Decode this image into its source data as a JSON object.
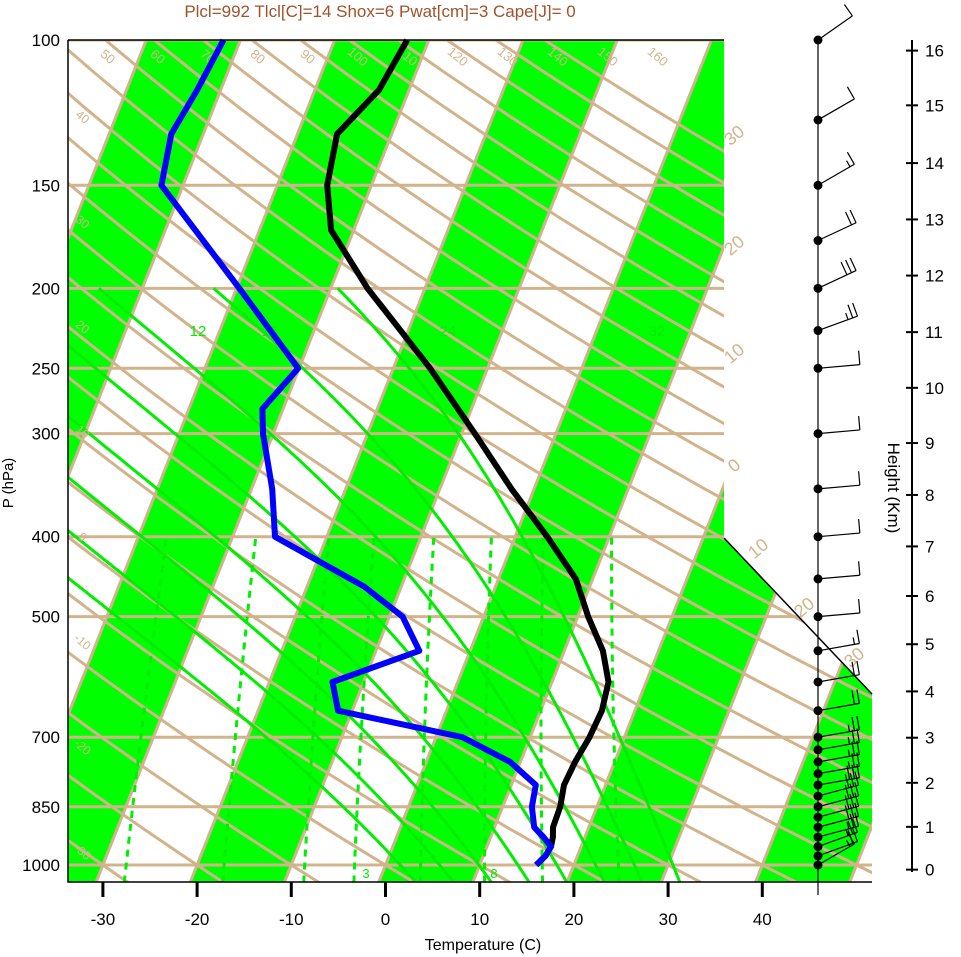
{
  "chart_data": {
    "type": "line",
    "title": "Plcl=992 Tlcl[C]=14 Shox=6 Pwat[cm]=3 Cape[J]= 0",
    "xlabel": "Temperature (C)",
    "ylabel": "P (hPa)",
    "y2label": "Height (Km)",
    "xlim": [
      -34,
      50
    ],
    "ylim": [
      1050,
      100
    ],
    "x_ticks": [
      "-30",
      "-20",
      "-10",
      "0",
      "10",
      "20",
      "30",
      "40"
    ],
    "x_tick_values": [
      -30,
      -20,
      -10,
      0,
      10,
      20,
      30,
      40
    ],
    "p_ticks": [
      "100",
      "150",
      "200",
      "250",
      "300",
      "400",
      "500",
      "700",
      "850",
      "1000"
    ],
    "p_tick_values": [
      100,
      150,
      200,
      250,
      300,
      400,
      500,
      700,
      850,
      1000
    ],
    "height_ticks": [
      "0",
      "1",
      "2",
      "3",
      "4",
      "5",
      "6",
      "7",
      "8",
      "9",
      "10",
      "11",
      "12",
      "13",
      "14",
      "15",
      "16"
    ],
    "height_p": [
      1013,
      899,
      795,
      701,
      616,
      540,
      472,
      411,
      356,
      308,
      264,
      226,
      193,
      165,
      141,
      120,
      103
    ],
    "isotherm_step_c": 10,
    "dry_adiabat_labels": [
      "50",
      "60",
      "70",
      "80",
      "90",
      "100",
      "110",
      "120",
      "130",
      "140",
      "150",
      "160"
    ],
    "temperature_band_labels": [
      "40",
      "30",
      "20",
      "10",
      "0",
      "-10",
      "-20",
      "-30"
    ],
    "moist_adiabat_labels": [
      "12",
      "16",
      "24",
      "32"
    ],
    "mixing_ratio_labels": [
      "3",
      "8"
    ],
    "right_labels": [
      "30",
      "20",
      "10",
      "0",
      "10",
      "20",
      "30"
    ],
    "colors": {
      "band": "#00ff00",
      "grid": "#d2b48c",
      "moist": "#00ee00",
      "temperature": "#000000",
      "dewpoint": "#0000ff",
      "title": "#a0522d"
    },
    "series": [
      {
        "name": "",
        "role": "temperature",
        "points": [
          [
            1000,
            16.0
          ],
          [
            975,
            16.6
          ],
          [
            950,
            16.8
          ],
          [
            925,
            16.6
          ],
          [
            900,
            16.2
          ],
          [
            850,
            16.1
          ],
          [
            800,
            15.6
          ],
          [
            750,
            15.8
          ],
          [
            700,
            16.3
          ],
          [
            650,
            16.5
          ],
          [
            600,
            16.0
          ],
          [
            550,
            14.1
          ],
          [
            500,
            11.1
          ],
          [
            450,
            8.2
          ],
          [
            400,
            3.4
          ],
          [
            350,
            -2.4
          ],
          [
            300,
            -8.6
          ],
          [
            250,
            -16.1
          ],
          [
            200,
            -26.1
          ],
          [
            170,
            -32.4
          ],
          [
            150,
            -34.7
          ],
          [
            130,
            -35.8
          ],
          [
            115,
            -33.2
          ],
          [
            100,
            -32.3
          ]
        ]
      },
      {
        "name": "",
        "role": "dewpoint",
        "points": [
          [
            1000,
            16.0
          ],
          [
            975,
            16.6
          ],
          [
            950,
            16.8
          ],
          [
            925,
            15.6
          ],
          [
            900,
            14.2
          ],
          [
            850,
            13.1
          ],
          [
            800,
            12.6
          ],
          [
            750,
            8.9
          ],
          [
            700,
            2.8
          ],
          [
            650,
            -11.5
          ],
          [
            600,
            -13.3
          ],
          [
            550,
            -5.4
          ],
          [
            500,
            -8.6
          ],
          [
            460,
            -13.9
          ],
          [
            400,
            -25.5
          ],
          [
            350,
            -27.8
          ],
          [
            300,
            -31.1
          ],
          [
            280,
            -32.2
          ],
          [
            250,
            -30.1
          ],
          [
            200,
            -39.7
          ],
          [
            150,
            -52.3
          ],
          [
            130,
            -53.4
          ],
          [
            115,
            -52.5
          ],
          [
            100,
            -51.8
          ]
        ]
      }
    ],
    "wind_barbs": [
      {
        "p": 1000,
        "speed": 15,
        "dir": 240
      },
      {
        "p": 975,
        "speed": 20,
        "dir": 250
      },
      {
        "p": 950,
        "speed": 25,
        "dir": 250
      },
      {
        "p": 925,
        "speed": 25,
        "dir": 255
      },
      {
        "p": 900,
        "speed": 30,
        "dir": 255
      },
      {
        "p": 875,
        "speed": 30,
        "dir": 255
      },
      {
        "p": 850,
        "speed": 30,
        "dir": 255
      },
      {
        "p": 825,
        "speed": 30,
        "dir": 255
      },
      {
        "p": 800,
        "speed": 30,
        "dir": 260
      },
      {
        "p": 775,
        "speed": 25,
        "dir": 260
      },
      {
        "p": 750,
        "speed": 25,
        "dir": 260
      },
      {
        "p": 725,
        "speed": 25,
        "dir": 260
      },
      {
        "p": 700,
        "speed": 25,
        "dir": 260
      },
      {
        "p": 650,
        "speed": 20,
        "dir": 260
      },
      {
        "p": 600,
        "speed": 20,
        "dir": 260
      },
      {
        "p": 550,
        "speed": 15,
        "dir": 260
      },
      {
        "p": 500,
        "speed": 10,
        "dir": 265
      },
      {
        "p": 450,
        "speed": 10,
        "dir": 265
      },
      {
        "p": 400,
        "speed": 10,
        "dir": 265
      },
      {
        "p": 350,
        "speed": 10,
        "dir": 265
      },
      {
        "p": 300,
        "speed": 10,
        "dir": 265
      },
      {
        "p": 250,
        "speed": 10,
        "dir": 265
      },
      {
        "p": 225,
        "speed": 25,
        "dir": 250
      },
      {
        "p": 200,
        "speed": 30,
        "dir": 245
      },
      {
        "p": 175,
        "speed": 20,
        "dir": 245
      },
      {
        "p": 150,
        "speed": 15,
        "dir": 240
      },
      {
        "p": 125,
        "speed": 10,
        "dir": 240
      },
      {
        "p": 100,
        "speed": 10,
        "dir": 235
      }
    ]
  }
}
